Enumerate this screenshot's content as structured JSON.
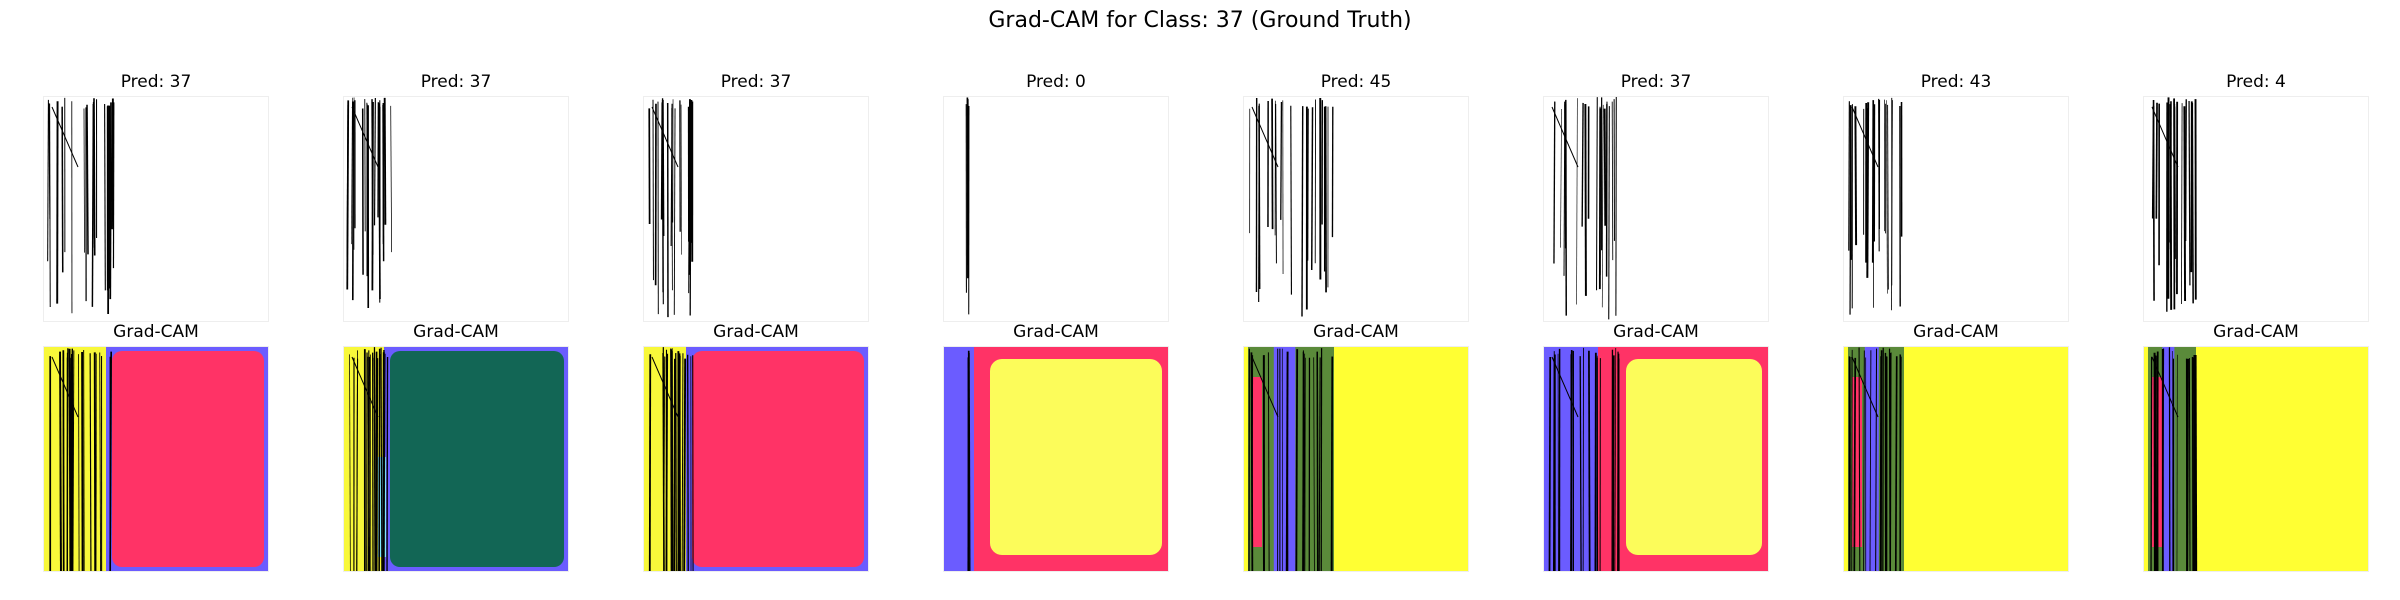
{
  "figure": {
    "title": "Grad-CAM for Class: 37 (Ground Truth)"
  },
  "columns": [
    {
      "pred": "Pred: 37",
      "cam_label": "Grad-CAM",
      "cam_region": "red"
    },
    {
      "pred": "Pred: 37",
      "cam_label": "Grad-CAM",
      "cam_region": "green"
    },
    {
      "pred": "Pred: 37",
      "cam_label": "Grad-CAM",
      "cam_region": "red"
    },
    {
      "pred": "Pred: 0",
      "cam_label": "Grad-CAM",
      "cam_region": "yellow"
    },
    {
      "pred": "Pred: 45",
      "cam_label": "Grad-CAM",
      "cam_region": "yellow"
    },
    {
      "pred": "Pred: 37",
      "cam_label": "Grad-CAM",
      "cam_region": "yellow"
    },
    {
      "pred": "Pred: 43",
      "cam_label": "Grad-CAM",
      "cam_region": "yellow"
    },
    {
      "pred": "Pred: 4",
      "cam_label": "Grad-CAM",
      "cam_region": "yellow"
    }
  ],
  "colors": {
    "yellow": "#f8f83a",
    "bright_yellow": "#ffff33",
    "pale_yellow": "#fcfc5a",
    "red": "#ff3366",
    "green": "#126655",
    "blue": "#6b5cff",
    "cyan": "#7fe8ff",
    "olive": "#5a8a3a"
  }
}
